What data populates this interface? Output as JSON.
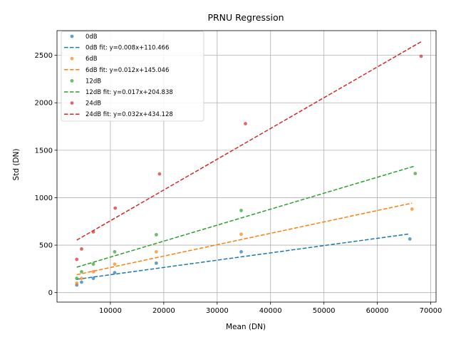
{
  "chart_data": {
    "type": "scatter",
    "title": "PRNU Regression",
    "xlabel": "Mean (DN)",
    "ylabel": "Std (DN)",
    "xlim": [
      0,
      71000
    ],
    "ylim": [
      -100,
      2760
    ],
    "xticks": [
      10000,
      20000,
      30000,
      40000,
      50000,
      60000,
      70000
    ],
    "yticks": [
      0,
      500,
      1000,
      1500,
      2000,
      2500
    ],
    "grid": true,
    "legend_position": "top-left",
    "series": [
      {
        "name": "0dB",
        "fit_name": "0dB fit: y=0.008x+110.466",
        "color": "#1f77b4",
        "x": [
          3700,
          4600,
          6800,
          10800,
          18600,
          34500,
          66100
        ],
        "y": [
          80,
          110,
          150,
          210,
          310,
          430,
          565
        ],
        "fit_x": [
          3700,
          66100
        ],
        "fit_y": [
          140,
          619
        ]
      },
      {
        "name": "6dB",
        "fit_name": "6dB fit: y=0.012x+145.046",
        "color": "#ff7f0e",
        "x": [
          3700,
          4600,
          6800,
          10800,
          18600,
          34500,
          66500
        ],
        "y": [
          100,
          150,
          220,
          300,
          430,
          615,
          880
        ],
        "fit_x": [
          3700,
          66500
        ],
        "fit_y": [
          189,
          943
        ]
      },
      {
        "name": "12dB",
        "fit_name": "12dB fit: y=0.017x+204.838",
        "color": "#2ca02c",
        "x": [
          3700,
          4600,
          6800,
          10800,
          18600,
          34500,
          67100
        ],
        "y": [
          150,
          220,
          300,
          430,
          610,
          865,
          1255
        ],
        "fit_x": [
          3700,
          67100
        ],
        "fit_y": [
          268,
          1335
        ]
      },
      {
        "name": "24dB",
        "fit_name": "24dB fit: y=0.032x+434.128",
        "color": "#d62728",
        "x": [
          3700,
          4600,
          6800,
          10900,
          19200,
          35300,
          68200
        ],
        "y": [
          350,
          460,
          640,
          890,
          1250,
          1780,
          2490
        ],
        "fit_x": [
          3700,
          68200
        ],
        "fit_y": [
          553,
          2643
        ]
      }
    ]
  }
}
